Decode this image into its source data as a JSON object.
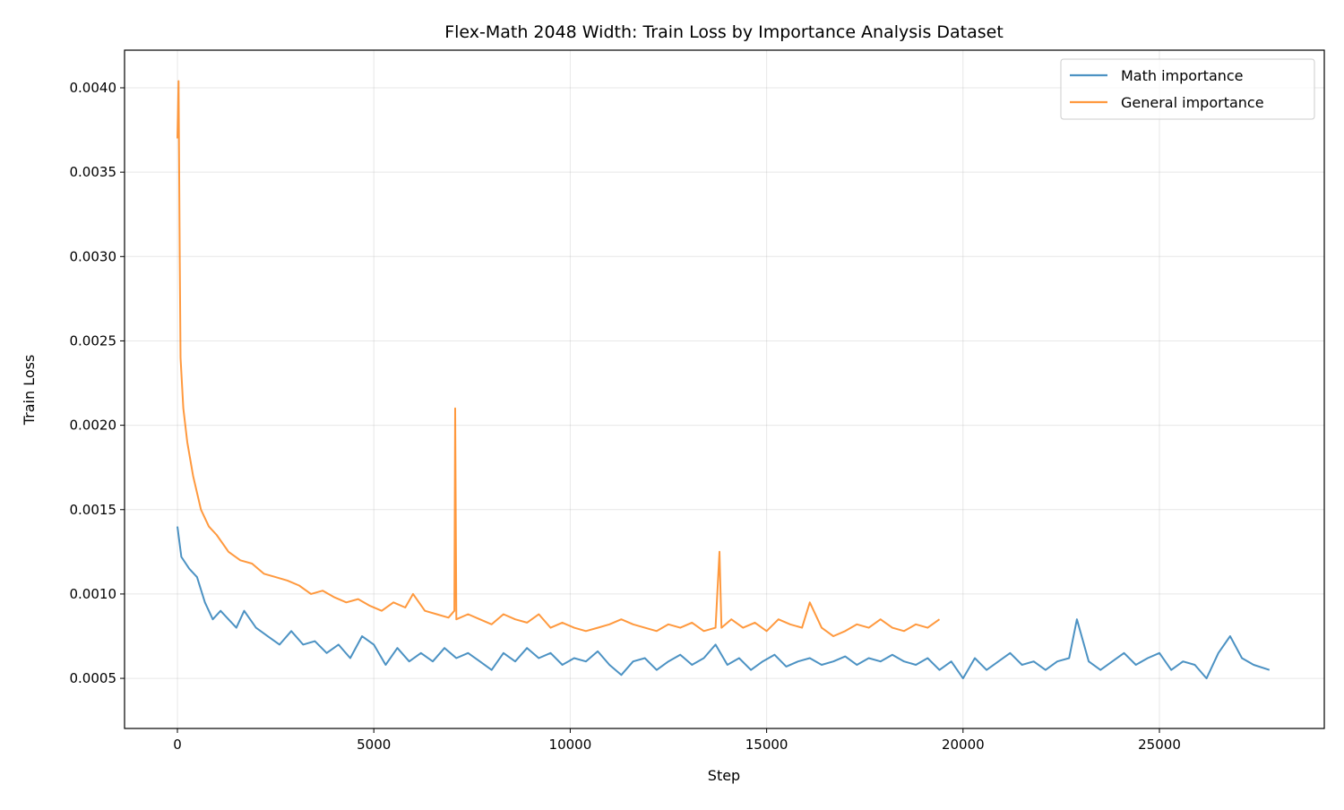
{
  "chart_data": {
    "type": "line",
    "title": "Flex-Math 2048 Width: Train Loss by Importance Analysis Dataset",
    "xlabel": "Step",
    "ylabel": "Train Loss",
    "xlim": [
      -1346,
      29197
    ],
    "ylim": [
      0.000203,
      0.004223
    ],
    "xticks": [
      0,
      5000,
      10000,
      15000,
      20000,
      25000
    ],
    "xtick_labels": [
      "0",
      "5000",
      "10000",
      "15000",
      "20000",
      "25000"
    ],
    "yticks": [
      0.0005,
      0.001,
      0.0015,
      0.002,
      0.0025,
      0.003,
      0.0035,
      0.004
    ],
    "ytick_labels": [
      "0.0005",
      "0.0010",
      "0.0015",
      "0.0020",
      "0.0025",
      "0.0030",
      "0.0035",
      "0.0040"
    ],
    "grid": true,
    "legend_position": "top-right",
    "series": [
      {
        "name": "Math importance",
        "color": "#1f77b4",
        "x": [
          0,
          100,
          300,
          500,
          700,
          900,
          1100,
          1300,
          1500,
          1700,
          2000,
          2300,
          2600,
          2900,
          3200,
          3500,
          3800,
          4100,
          4400,
          4700,
          5000,
          5300,
          5600,
          5900,
          6200,
          6500,
          6800,
          7100,
          7400,
          7700,
          8000,
          8300,
          8600,
          8900,
          9200,
          9500,
          9800,
          10100,
          10400,
          10700,
          11000,
          11300,
          11600,
          11900,
          12200,
          12500,
          12800,
          13100,
          13400,
          13700,
          14000,
          14300,
          14600,
          14900,
          15200,
          15500,
          15800,
          16100,
          16400,
          16700,
          17000,
          17300,
          17600,
          17900,
          18200,
          18500,
          18800,
          19100,
          19400,
          19700,
          20000,
          20300,
          20600,
          20900,
          21200,
          21500,
          21800,
          22100,
          22400,
          22700,
          22900,
          23200,
          23500,
          23800,
          24100,
          24400,
          24700,
          25000,
          25300,
          25600,
          25900,
          26200,
          26500,
          26800,
          27100,
          27400,
          27800
        ],
        "y": [
          0.0014,
          0.00122,
          0.00115,
          0.0011,
          0.00095,
          0.00085,
          0.0009,
          0.00085,
          0.0008,
          0.0009,
          0.0008,
          0.00075,
          0.0007,
          0.00078,
          0.0007,
          0.00072,
          0.00065,
          0.0007,
          0.00062,
          0.00075,
          0.0007,
          0.00058,
          0.00068,
          0.0006,
          0.00065,
          0.0006,
          0.00068,
          0.00062,
          0.00065,
          0.0006,
          0.00055,
          0.00065,
          0.0006,
          0.00068,
          0.00062,
          0.00065,
          0.00058,
          0.00062,
          0.0006,
          0.00066,
          0.00058,
          0.00052,
          0.0006,
          0.00062,
          0.00055,
          0.0006,
          0.00064,
          0.00058,
          0.00062,
          0.0007,
          0.00058,
          0.00062,
          0.00055,
          0.0006,
          0.00064,
          0.00057,
          0.0006,
          0.00062,
          0.00058,
          0.0006,
          0.00063,
          0.00058,
          0.00062,
          0.0006,
          0.00064,
          0.0006,
          0.00058,
          0.00062,
          0.00055,
          0.0006,
          0.0005,
          0.00062,
          0.00055,
          0.0006,
          0.00065,
          0.00058,
          0.0006,
          0.00055,
          0.0006,
          0.00062,
          0.00085,
          0.0006,
          0.00055,
          0.0006,
          0.00065,
          0.00058,
          0.00062,
          0.00065,
          0.00055,
          0.0006,
          0.00058,
          0.0005,
          0.00065,
          0.00075,
          0.00062,
          0.00058,
          0.00055
        ]
      },
      {
        "name": "General importance",
        "color": "#ff7f0e",
        "x": [
          0,
          30,
          60,
          80,
          150,
          250,
          400,
          600,
          800,
          1000,
          1300,
          1600,
          1900,
          2200,
          2500,
          2800,
          3100,
          3400,
          3700,
          4000,
          4300,
          4600,
          4900,
          5200,
          5500,
          5800,
          6000,
          6300,
          6600,
          6900,
          7050,
          7070,
          7100,
          7400,
          7700,
          8000,
          8300,
          8600,
          8900,
          9200,
          9500,
          9800,
          10100,
          10400,
          10700,
          11000,
          11300,
          11600,
          11900,
          12200,
          12500,
          12800,
          13100,
          13400,
          13700,
          13800,
          13850,
          14100,
          14400,
          14700,
          15000,
          15300,
          15600,
          15900,
          16100,
          16400,
          16700,
          17000,
          17300,
          17600,
          17900,
          18200,
          18500,
          18800,
          19100,
          19400
        ],
        "y": [
          0.0037,
          0.00404,
          0.003,
          0.0024,
          0.0021,
          0.0019,
          0.0017,
          0.0015,
          0.0014,
          0.00135,
          0.00125,
          0.0012,
          0.00118,
          0.00112,
          0.0011,
          0.00108,
          0.00105,
          0.001,
          0.00102,
          0.00098,
          0.00095,
          0.00097,
          0.00093,
          0.0009,
          0.00095,
          0.00092,
          0.001,
          0.0009,
          0.00088,
          0.00086,
          0.0009,
          0.0021,
          0.00085,
          0.00088,
          0.00085,
          0.00082,
          0.00088,
          0.00085,
          0.00083,
          0.00088,
          0.0008,
          0.00083,
          0.0008,
          0.00078,
          0.0008,
          0.00082,
          0.00085,
          0.00082,
          0.0008,
          0.00078,
          0.00082,
          0.0008,
          0.00083,
          0.00078,
          0.0008,
          0.00125,
          0.0008,
          0.00085,
          0.0008,
          0.00083,
          0.00078,
          0.00085,
          0.00082,
          0.0008,
          0.00095,
          0.0008,
          0.00075,
          0.00078,
          0.00082,
          0.0008,
          0.00085,
          0.0008,
          0.00078,
          0.00082,
          0.0008,
          0.00085
        ]
      }
    ]
  }
}
